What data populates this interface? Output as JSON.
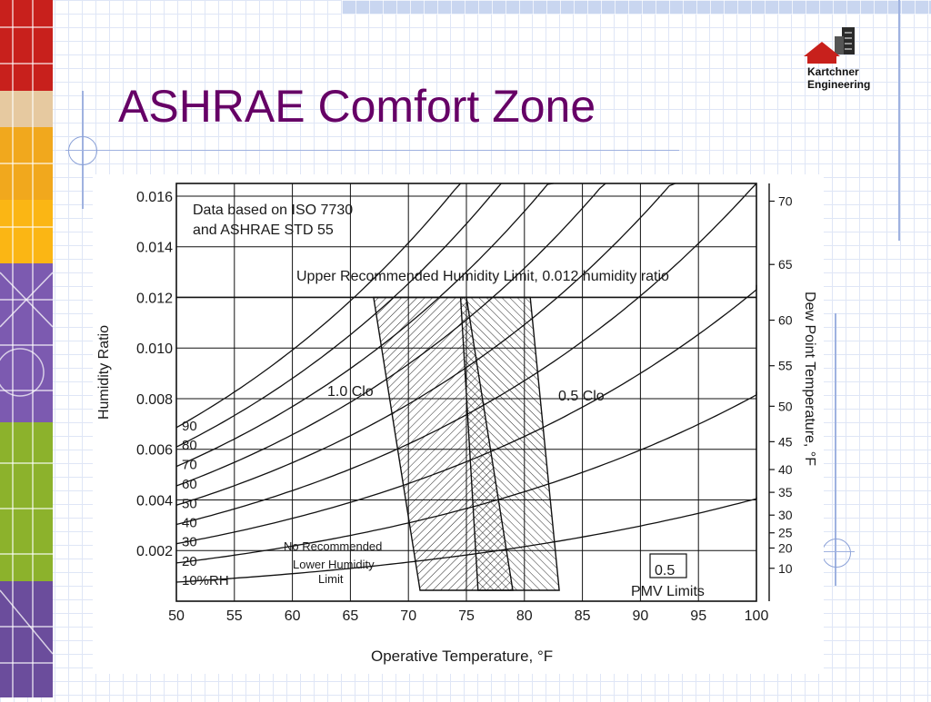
{
  "slide": {
    "title": "ASHRAE Comfort Zone",
    "logo_line1": "Kartchner",
    "logo_line2": "Engineering",
    "accent_color": "#660066"
  },
  "chart_data": {
    "type": "line",
    "xlabel": "Operative Temperature, °F",
    "ylabel": "Humidity Ratio",
    "y2label": "Dew Point Temperature, °F",
    "xlim": [
      50,
      100
    ],
    "ylim": [
      0,
      0.0165
    ],
    "x_ticks": [
      "50",
      "55",
      "60",
      "65",
      "70",
      "75",
      "80",
      "85",
      "90",
      "95",
      "100"
    ],
    "y_ticks": [
      {
        "v": 0.002,
        "label": "0.002"
      },
      {
        "v": 0.004,
        "label": "0.004"
      },
      {
        "v": 0.006,
        "label": "0.006"
      },
      {
        "v": 0.008,
        "label": "0.008"
      },
      {
        "v": 0.01,
        "label": "0.010"
      },
      {
        "v": 0.012,
        "label": "0.012"
      },
      {
        "v": 0.014,
        "label": "0.014"
      },
      {
        "v": 0.016,
        "label": "0.016"
      }
    ],
    "dew_point_ticks": [
      {
        "label": "10",
        "w": 0.0013
      },
      {
        "label": "20",
        "w": 0.0021
      },
      {
        "label": "25",
        "w": 0.0027
      },
      {
        "label": "30",
        "w": 0.0034
      },
      {
        "label": "35",
        "w": 0.0043
      },
      {
        "label": "40",
        "w": 0.0052
      },
      {
        "label": "45",
        "w": 0.0063
      },
      {
        "label": "50",
        "w": 0.0077
      },
      {
        "label": "55",
        "w": 0.0093
      },
      {
        "label": "60",
        "w": 0.0111
      },
      {
        "label": "65",
        "w": 0.0133
      },
      {
        "label": "70",
        "w": 0.0158
      }
    ],
    "grid": true,
    "rh_curves": [
      10,
      20,
      30,
      40,
      50,
      60,
      70,
      80,
      90
    ],
    "rh_labels": [
      "10%RH",
      "20",
      "30",
      "40",
      "50",
      "60",
      "70",
      "80",
      "90"
    ],
    "zones": [
      {
        "name": "1.0 Clo",
        "polygon": [
          [
            67,
            0.012
          ],
          [
            75,
            0.012
          ],
          [
            79,
            0.0
          ],
          [
            71,
            0.0
          ]
        ]
      },
      {
        "name": "0.5 Clo",
        "polygon": [
          [
            74.5,
            0.012
          ],
          [
            80.5,
            0.012
          ],
          [
            83,
            0.0
          ],
          [
            76,
            0.0
          ]
        ]
      }
    ],
    "upper_humidity_limit": 0.012,
    "annotations": {
      "source_line1": "Data based on ISO 7730",
      "source_line2": "and ASHRAE STD 55",
      "upper_limit": "Upper Recommended Humidity Limit, 0.012 humidity ratio",
      "zone1": "1.0 Clo",
      "zone2": "0.5 Clo",
      "lower_line1": "No Recommended",
      "lower_line2": "Lower Humidity",
      "lower_line3": "Limit",
      "pmv_box": "0.5",
      "pmv_label": "PMV Limits"
    }
  }
}
